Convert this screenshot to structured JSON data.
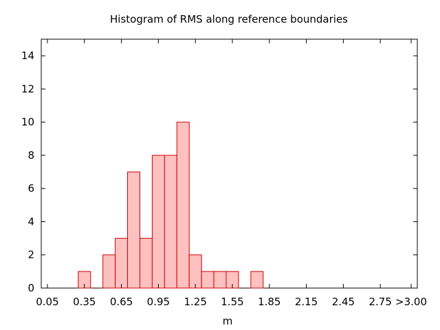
{
  "chart_data": {
    "type": "bar",
    "title": "Histogram of RMS along reference boundaries",
    "xlabel": "m",
    "ylabel": "",
    "ylim": [
      0,
      15
    ],
    "xlim": [
      0.0,
      3.05
    ],
    "grid": false,
    "bin_width": 0.1,
    "x_tick_labels": [
      "0.05",
      "0.35",
      "0.65",
      "0.95",
      "1.25",
      "1.55",
      "1.85",
      "2.15",
      "2.45",
      "2.75",
      ">3.00"
    ],
    "x_tick_values": [
      0.05,
      0.35,
      0.65,
      0.95,
      1.25,
      1.55,
      1.85,
      2.15,
      2.45,
      2.75,
      3.0
    ],
    "y_tick_labels": [
      "0",
      "2",
      "4",
      "6",
      "8",
      "10",
      "12",
      "14"
    ],
    "y_tick_values": [
      0,
      2,
      4,
      6,
      8,
      10,
      12,
      14
    ],
    "bins": [
      {
        "x": 0.35,
        "value": 1
      },
      {
        "x": 0.55,
        "value": 2
      },
      {
        "x": 0.65,
        "value": 3
      },
      {
        "x": 0.75,
        "value": 7
      },
      {
        "x": 0.85,
        "value": 3
      },
      {
        "x": 0.95,
        "value": 8
      },
      {
        "x": 1.05,
        "value": 8
      },
      {
        "x": 1.15,
        "value": 10
      },
      {
        "x": 1.25,
        "value": 2
      },
      {
        "x": 1.35,
        "value": 1
      },
      {
        "x": 1.45,
        "value": 1
      },
      {
        "x": 1.55,
        "value": 1
      },
      {
        "x": 1.75,
        "value": 1
      }
    ],
    "colors": {
      "bar_fill": "#ffc0c0",
      "bar_stroke": "#cc0000",
      "axis": "#000000"
    }
  }
}
